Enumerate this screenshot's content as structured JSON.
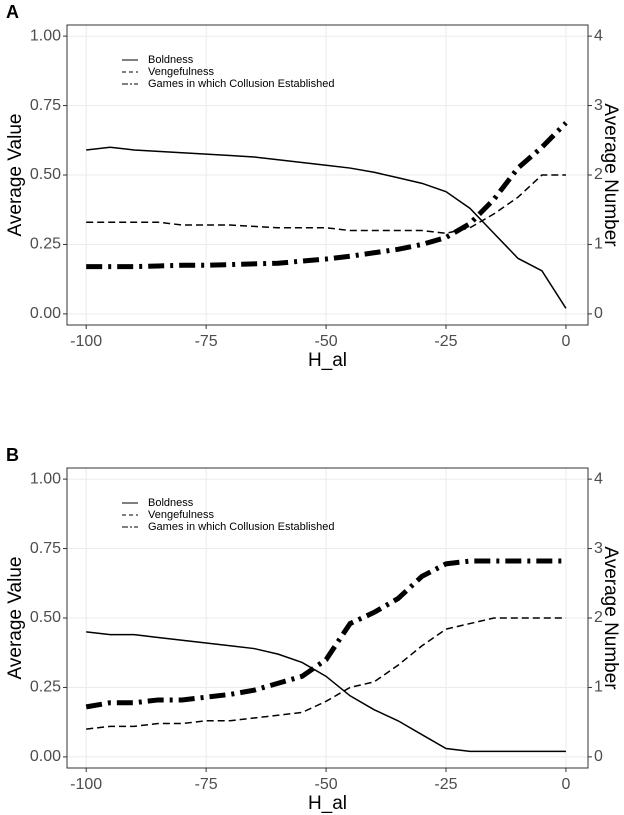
{
  "chart_data": [
    {
      "type": "line",
      "label": "A",
      "xlabel": "H_al",
      "ylabel": "Average Value",
      "y2label": "Average Number",
      "x": [
        -100,
        -95,
        -90,
        -85,
        -80,
        -75,
        -70,
        -65,
        -60,
        -55,
        -50,
        -45,
        -40,
        -35,
        -30,
        -25,
        -20,
        -15,
        -10,
        -5,
        0
      ],
      "series": [
        {
          "name": "Boldness",
          "color": "#000000",
          "dash": "solid",
          "values": [
            0.59,
            0.6,
            0.59,
            0.585,
            0.58,
            0.575,
            0.57,
            0.565,
            0.555,
            0.545,
            0.535,
            0.525,
            0.51,
            0.49,
            0.47,
            0.44,
            0.38,
            0.29,
            0.2,
            0.155,
            0.02
          ]
        },
        {
          "name": "Vengefulness",
          "color": "#000000",
          "dash": "dashed",
          "values": [
            0.33,
            0.33,
            0.33,
            0.33,
            0.32,
            0.32,
            0.32,
            0.315,
            0.31,
            0.31,
            0.31,
            0.3,
            0.3,
            0.3,
            0.3,
            0.29,
            0.31,
            0.36,
            0.42,
            0.5,
            0.5
          ]
        },
        {
          "name": "Games in which Collusion Established",
          "color": "#000000",
          "dash": "dashdot",
          "axis": "y2",
          "values": [
            0.68,
            0.68,
            0.68,
            0.69,
            0.7,
            0.7,
            0.71,
            0.72,
            0.73,
            0.76,
            0.79,
            0.83,
            0.88,
            0.93,
            1.0,
            1.1,
            1.3,
            1.65,
            2.1,
            2.4,
            2.75
          ]
        }
      ],
      "xlim": [
        -104,
        4.6
      ],
      "xticks": [
        -100,
        -75,
        -50,
        -25,
        0
      ],
      "ylim": [
        -0.04,
        1.04
      ],
      "yticks": [
        {
          "value": 0,
          "label": "0.00"
        },
        0.25,
        {
          "value": 0.5,
          "label": "0.50"
        },
        0.75,
        {
          "value": 1,
          "label": "1.00"
        }
      ],
      "y2lim": [
        -0.16,
        4.16
      ],
      "y2ticks": [
        0,
        1,
        2,
        3,
        4
      ],
      "grid": true,
      "legend": "top-left"
    },
    {
      "type": "line",
      "label": "B",
      "xlabel": "H_al",
      "ylabel": "Average Value",
      "y2label": "Average Number",
      "x": [
        -100,
        -95,
        -90,
        -85,
        -80,
        -75,
        -70,
        -65,
        -60,
        -55,
        -50,
        -45,
        -40,
        -35,
        -30,
        -25,
        -20,
        -15,
        -10,
        -5,
        0
      ],
      "series": [
        {
          "name": "Boldness",
          "color": "#000000",
          "dash": "solid",
          "values": [
            0.45,
            0.44,
            0.44,
            0.43,
            0.42,
            0.41,
            0.4,
            0.39,
            0.37,
            0.34,
            0.29,
            0.22,
            0.17,
            0.13,
            0.08,
            0.03,
            0.02,
            0.02,
            0.02,
            0.02,
            0.02
          ]
        },
        {
          "name": "Vengefulness",
          "color": "#000000",
          "dash": "dashed",
          "values": [
            0.1,
            0.11,
            0.11,
            0.12,
            0.12,
            0.13,
            0.13,
            0.14,
            0.15,
            0.16,
            0.2,
            0.25,
            0.27,
            0.33,
            0.4,
            0.46,
            0.48,
            0.5,
            0.5,
            0.5,
            0.5
          ]
        },
        {
          "name": "Games in which Collusion Established",
          "color": "#000000",
          "dash": "dashdot",
          "axis": "y2",
          "values": [
            0.72,
            0.78,
            0.78,
            0.82,
            0.82,
            0.86,
            0.9,
            0.96,
            1.06,
            1.16,
            1.4,
            1.92,
            2.08,
            2.28,
            2.6,
            2.78,
            2.82,
            2.82,
            2.82,
            2.82,
            2.82
          ]
        }
      ],
      "xlim": [
        -104,
        4.6
      ],
      "xticks": [
        -100,
        -75,
        -50,
        -25,
        0
      ],
      "ylim": [
        -0.04,
        1.04
      ],
      "yticks": [
        {
          "value": 0,
          "label": "0.00"
        },
        0.25,
        {
          "value": 0.5,
          "label": "0.50"
        },
        0.75,
        {
          "value": 1,
          "label": "1.00"
        }
      ],
      "y2lim": [
        -0.16,
        4.16
      ],
      "y2ticks": [
        0,
        1,
        2,
        3,
        4
      ],
      "grid": true,
      "legend": "top-left"
    }
  ]
}
